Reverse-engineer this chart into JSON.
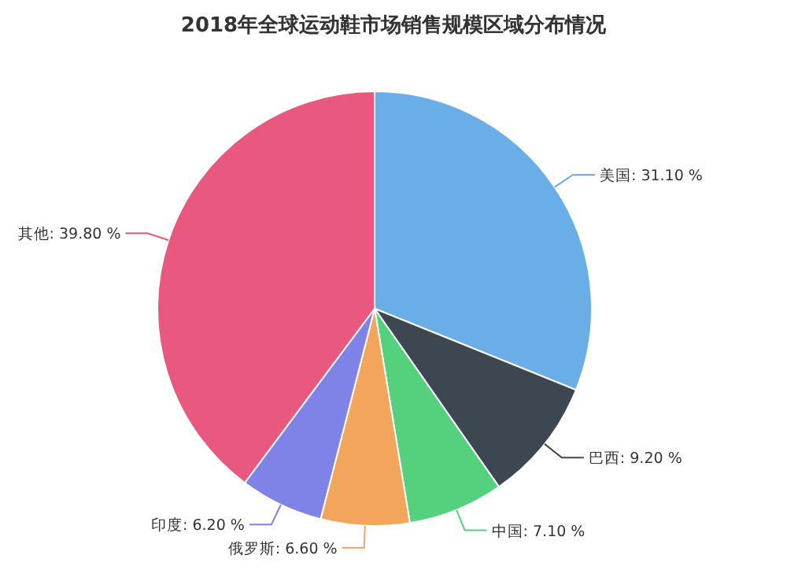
{
  "chart_data": {
    "type": "pie",
    "title": "2018年全球运动鞋市场销售规模区域分布情况",
    "categories": [
      "美国",
      "巴西",
      "中国",
      "俄罗斯",
      "印度",
      "其他"
    ],
    "values": [
      31.1,
      9.2,
      7.1,
      6.6,
      6.2,
      39.8
    ],
    "value_labels": [
      "31.10 %",
      "9.20 %",
      "7.10 %",
      "6.60 %",
      "6.20 %",
      "39.80 %"
    ],
    "colors": [
      "#6aaee8",
      "#3c4752",
      "#55d17e",
      "#f4a55c",
      "#7f82e6",
      "#e9587e"
    ]
  }
}
